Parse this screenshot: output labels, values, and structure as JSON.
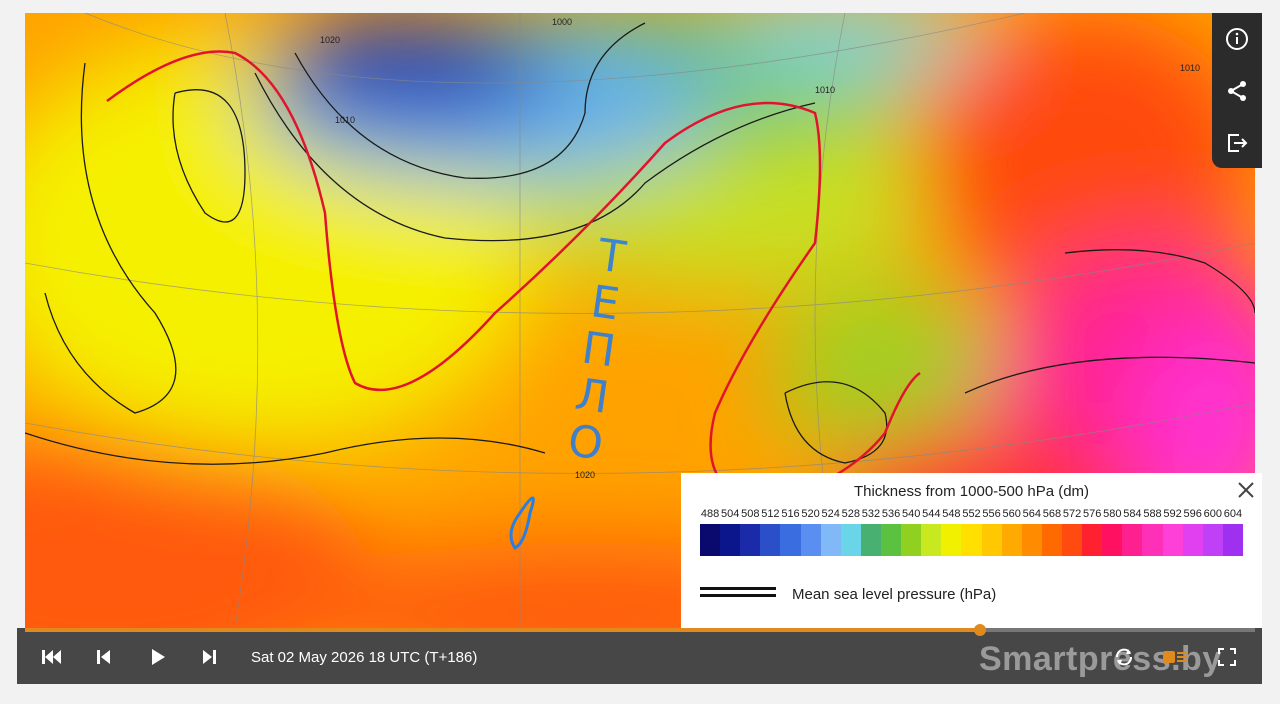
{
  "map": {
    "contour_labels": [
      "1020",
      "1000",
      "1010",
      "1010",
      "1020",
      "1010"
    ]
  },
  "annotation": "ТЕПЛО",
  "legend": {
    "title": "Thickness from 1000-500 hPa (dm)",
    "scale": {
      "labels": [
        488,
        504,
        508,
        512,
        516,
        520,
        524,
        528,
        532,
        536,
        540,
        544,
        548,
        552,
        556,
        560,
        564,
        568,
        572,
        576,
        580,
        584,
        588,
        592,
        596,
        600,
        604
      ],
      "colors": [
        "#0a0a6e",
        "#0c168c",
        "#1a2aa8",
        "#2a4fc8",
        "#3a6ee0",
        "#5a8ef0",
        "#80b8f8",
        "#6ad4e8",
        "#48b070",
        "#5cc040",
        "#90d020",
        "#c8e820",
        "#f0f000",
        "#ffe000",
        "#ffc800",
        "#ffaa00",
        "#ff8c00",
        "#ff6a00",
        "#ff4a10",
        "#ff2030",
        "#ff1060",
        "#ff2090",
        "#ff30b8",
        "#ff40d8",
        "#e040f0",
        "#c040f8",
        "#a030f0"
      ]
    },
    "pressure_label": "Mean sea level pressure (hPa)"
  },
  "player": {
    "timestamp": "Sat 02 May 2026 18 UTC (T+186)"
  },
  "watermark": "Smartpress.by"
}
